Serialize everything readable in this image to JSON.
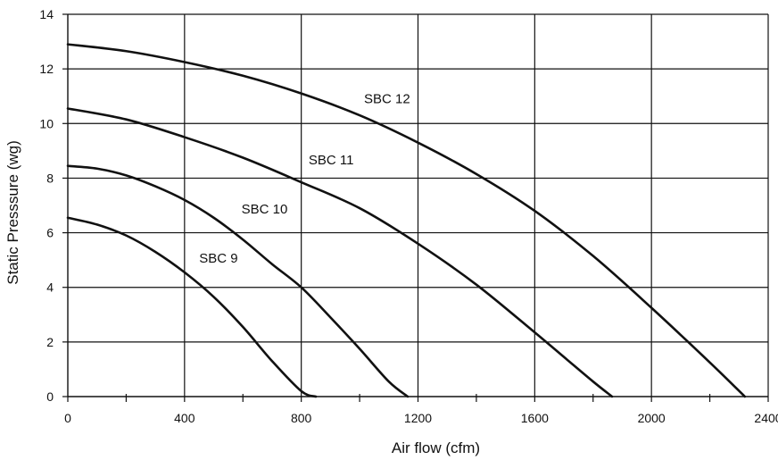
{
  "chart_data": {
    "type": "line",
    "title": "",
    "xlabel": "Air flow (cfm)",
    "ylabel": "Static Presssure (wg)",
    "xlim": [
      0,
      2400
    ],
    "ylim": [
      0,
      14
    ],
    "x_ticks": [
      0,
      400,
      800,
      1200,
      1600,
      2000,
      2400
    ],
    "y_ticks": [
      0,
      2,
      4,
      6,
      8,
      10,
      12,
      14
    ],
    "x_ticks_labels": [
      "0",
      "400",
      "800",
      "1200",
      "1600",
      "2000",
      "2400"
    ],
    "y_ticks_labels": [
      "0",
      "2",
      "4",
      "6",
      "8",
      "10",
      "12",
      "14"
    ],
    "x_grid": [
      400,
      800,
      1200,
      1600,
      2000,
      2400
    ],
    "y_grid": [
      2,
      4,
      6,
      8,
      10,
      12,
      14
    ],
    "x_minor_ticks": [
      200,
      600,
      1000,
      1400,
      1800,
      2200
    ],
    "grid": true,
    "legend": "labels on curves",
    "line_color": "#111111",
    "series": [
      {
        "name": "SBC 9",
        "x": [
          0,
          100,
          200,
          300,
          400,
          500,
          600,
          700,
          800,
          850
        ],
        "y": [
          6.55,
          6.3,
          5.9,
          5.3,
          4.55,
          3.65,
          2.55,
          1.3,
          0.2,
          0
        ]
      },
      {
        "name": "SBC 10",
        "x": [
          0,
          100,
          200,
          300,
          400,
          500,
          600,
          700,
          800,
          900,
          1000,
          1100,
          1165
        ],
        "y": [
          8.45,
          8.35,
          8.1,
          7.7,
          7.2,
          6.55,
          5.75,
          4.85,
          4.0,
          2.9,
          1.75,
          0.55,
          0
        ]
      },
      {
        "name": "SBC 11",
        "x": [
          0,
          200,
          400,
          600,
          800,
          1000,
          1200,
          1400,
          1600,
          1700,
          1800,
          1865
        ],
        "y": [
          10.55,
          10.15,
          9.5,
          8.75,
          7.85,
          6.9,
          5.6,
          4.1,
          2.35,
          1.45,
          0.55,
          0
        ]
      },
      {
        "name": "SBC 12",
        "x": [
          0,
          200,
          400,
          600,
          800,
          1000,
          1200,
          1400,
          1600,
          1800,
          2000,
          2200,
          2320
        ],
        "y": [
          12.9,
          12.65,
          12.25,
          11.75,
          11.1,
          10.3,
          9.3,
          8.15,
          6.8,
          5.15,
          3.25,
          1.25,
          0
        ]
      }
    ],
    "series_labels": [
      {
        "text": "SBC 9",
        "x": 450,
        "y": 4.9
      },
      {
        "text": "SBC 10",
        "x": 595,
        "y": 6.7
      },
      {
        "text": "SBC 11",
        "x": 825,
        "y": 8.5
      },
      {
        "text": "SBC 12",
        "x": 1015,
        "y": 10.75
      }
    ]
  }
}
